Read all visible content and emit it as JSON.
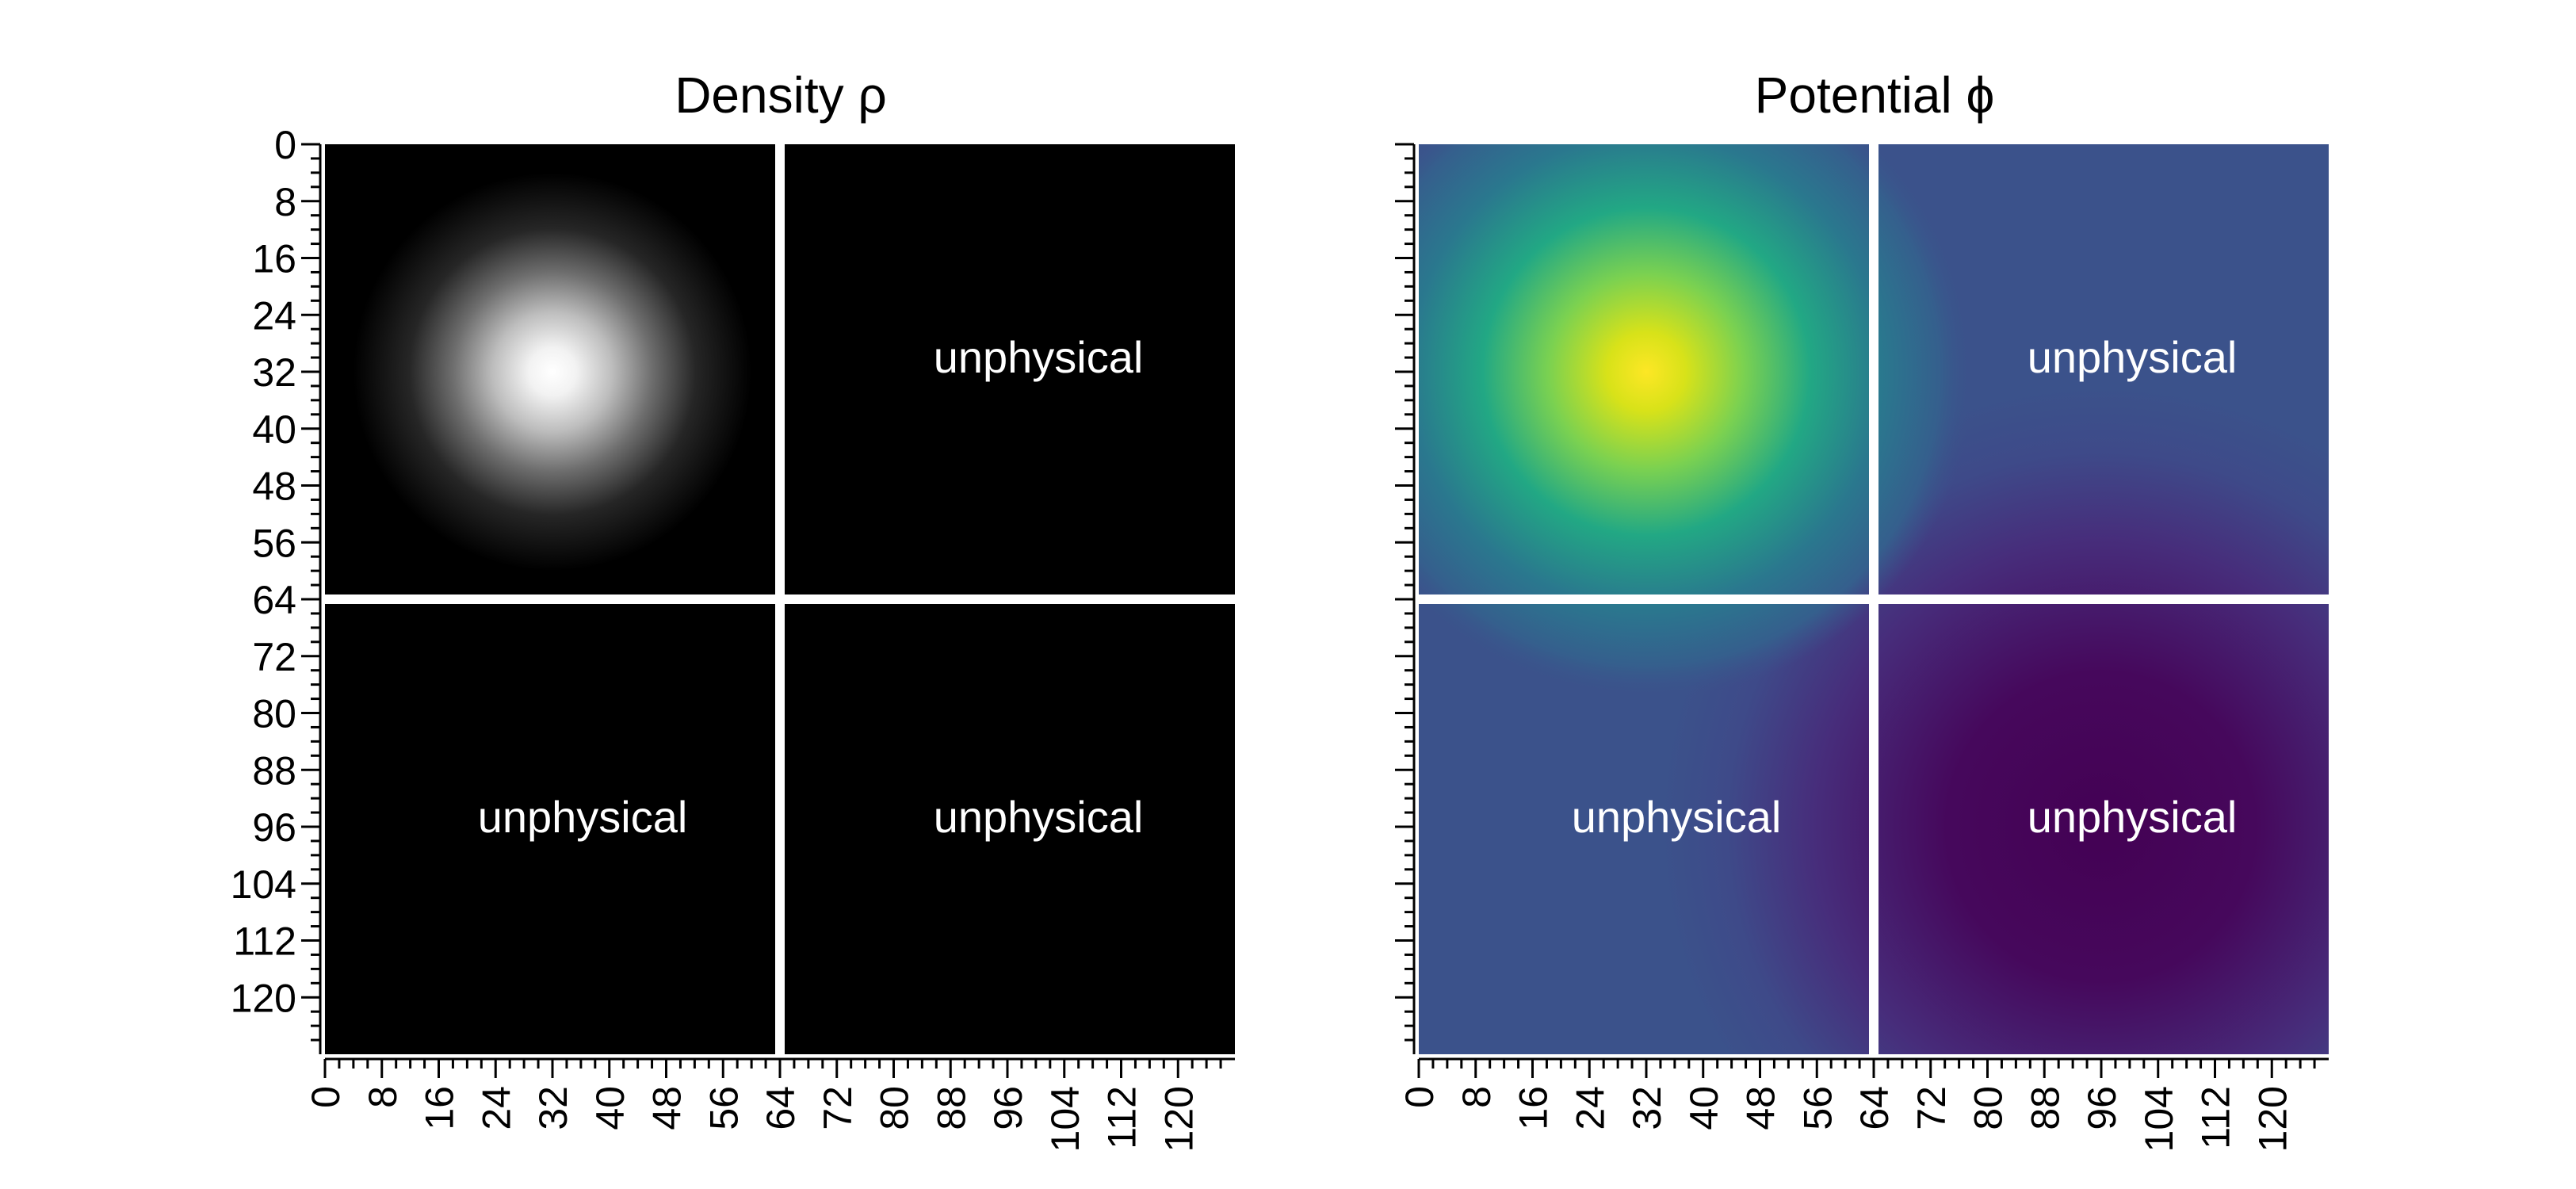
{
  "chart_data": [
    {
      "type": "heatmap",
      "title": "Density ρ",
      "colormap": "gray",
      "x_ticks": [
        0,
        8,
        16,
        24,
        32,
        40,
        48,
        56,
        64,
        72,
        80,
        88,
        96,
        104,
        112,
        120
      ],
      "y_ticks": [
        0,
        8,
        16,
        24,
        32,
        40,
        48,
        56,
        64,
        72,
        80,
        88,
        96,
        104,
        112,
        120
      ],
      "xlim": [
        0,
        128
      ],
      "ylim": [
        0,
        128
      ],
      "grid_size": 128,
      "physical_domain": {
        "x": [
          0,
          64
        ],
        "y": [
          0,
          64
        ]
      },
      "blob_center": [
        32,
        32
      ],
      "quadrant_labels": [
        {
          "quadrant": "top-right",
          "text": "unphysical"
        },
        {
          "quadrant": "bottom-left",
          "text": "unphysical"
        },
        {
          "quadrant": "bottom-right",
          "text": "unphysical"
        }
      ],
      "show_y_tick_labels": true
    },
    {
      "type": "heatmap",
      "title": "Potential ϕ",
      "colormap": "viridis",
      "x_ticks": [
        0,
        8,
        16,
        24,
        32,
        40,
        48,
        56,
        64,
        72,
        80,
        88,
        96,
        104,
        112,
        120
      ],
      "y_ticks": [
        0,
        8,
        16,
        24,
        32,
        40,
        48,
        56,
        64,
        72,
        80,
        88,
        96,
        104,
        112,
        120
      ],
      "xlim": [
        0,
        128
      ],
      "ylim": [
        0,
        128
      ],
      "grid_size": 128,
      "physical_domain": {
        "x": [
          0,
          64
        ],
        "y": [
          0,
          64
        ]
      },
      "peak_center": [
        32,
        32
      ],
      "minimum_center": [
        96,
        96
      ],
      "quadrant_labels": [
        {
          "quadrant": "top-right",
          "text": "unphysical"
        },
        {
          "quadrant": "bottom-left",
          "text": "unphysical"
        },
        {
          "quadrant": "bottom-right",
          "text": "unphysical"
        }
      ],
      "show_y_tick_labels": false
    }
  ]
}
